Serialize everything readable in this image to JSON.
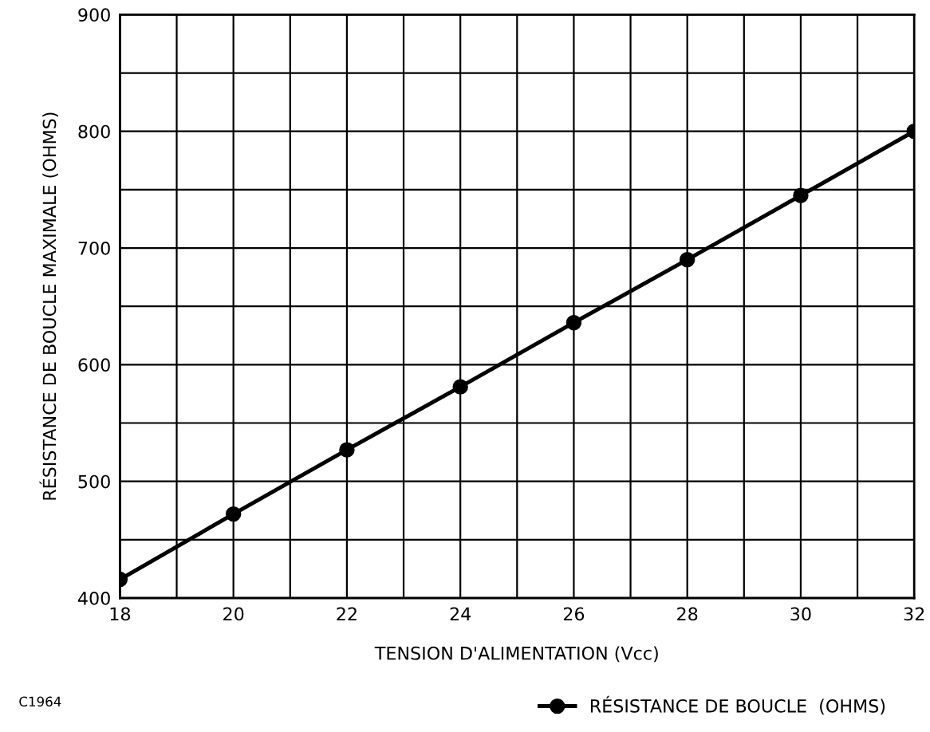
{
  "chart_data": {
    "type": "line",
    "xlabel": "TENSION D'ALIMENTATION (Vcc)",
    "ylabel": "RÉSISTANCE DE BOUCLE MAXIMALE (OHMS)",
    "x": [
      18,
      20,
      22,
      24,
      26,
      28,
      30,
      32
    ],
    "series": [
      {
        "name": "RÉSISTANCE DE BOUCLE  (OHMS)",
        "color": "#000000",
        "values": [
          416,
          472,
          527,
          581,
          636,
          690,
          745,
          800
        ]
      }
    ],
    "xlim": [
      18,
      32
    ],
    "ylim": [
      400,
      900
    ],
    "xticks": [
      18,
      {
        "value": 19,
        "label": null
      },
      20,
      {
        "value": 21,
        "label": null
      },
      22,
      {
        "value": 23,
        "label": null
      },
      24,
      {
        "value": 25,
        "label": null
      },
      26,
      {
        "value": 27,
        "label": null
      },
      28,
      {
        "value": 29,
        "label": null
      },
      30,
      {
        "value": 31,
        "label": null
      },
      32
    ],
    "yticks": [
      400,
      {
        "value": 450,
        "label": null
      },
      500,
      {
        "value": 550,
        "label": null
      },
      600,
      {
        "value": 650,
        "label": null
      },
      700,
      {
        "value": 750,
        "label": null
      },
      800,
      {
        "value": 850,
        "label": null
      },
      900
    ],
    "grid": true,
    "marker": "circle",
    "line_style": "solid",
    "legend": "bottom right",
    "annotations": [
      "C1964"
    ]
  }
}
